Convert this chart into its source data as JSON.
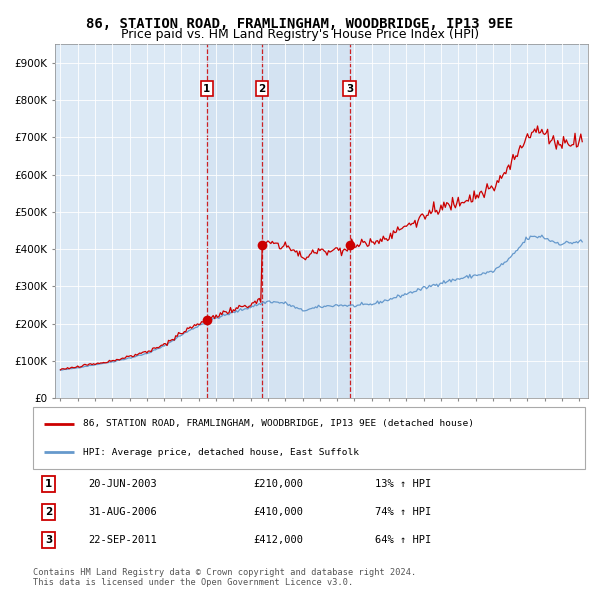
{
  "title": "86, STATION ROAD, FRAMLINGHAM, WOODBRIDGE, IP13 9EE",
  "subtitle": "Price paid vs. HM Land Registry's House Price Index (HPI)",
  "legend_line1": "86, STATION ROAD, FRAMLINGHAM, WOODBRIDGE, IP13 9EE (detached house)",
  "legend_line2": "HPI: Average price, detached house, East Suffolk",
  "footer1": "Contains HM Land Registry data © Crown copyright and database right 2024.",
  "footer2": "This data is licensed under the Open Government Licence v3.0.",
  "transactions": [
    {
      "num": 1,
      "date": "20-JUN-2003",
      "price": 210000,
      "pct": "13%",
      "x_year": 2003.47
    },
    {
      "num": 2,
      "date": "31-AUG-2006",
      "price": 410000,
      "pct": "74%",
      "x_year": 2006.66
    },
    {
      "num": 3,
      "date": "22-SEP-2011",
      "price": 412000,
      "pct": "64%",
      "x_year": 2011.72
    }
  ],
  "red_line_color": "#cc0000",
  "blue_line_color": "#6699cc",
  "bg_color": "#dce9f5",
  "vline_color": "#cc0000",
  "label_box_color": "#cc0000",
  "ylim": [
    0,
    950000
  ],
  "yticks": [
    0,
    100000,
    200000,
    300000,
    400000,
    500000,
    600000,
    700000,
    800000,
    900000
  ],
  "ytick_labels": [
    "£0",
    "£100K",
    "£200K",
    "£300K",
    "£400K",
    "£500K",
    "£600K",
    "£700K",
    "£800K",
    "£900K"
  ],
  "title_fontsize": 10,
  "subtitle_fontsize": 9,
  "hpi_anchors": [
    [
      1995.0,
      75000
    ],
    [
      1996.0,
      82000
    ],
    [
      1997.0,
      90000
    ],
    [
      1998.0,
      98000
    ],
    [
      1999.0,
      108000
    ],
    [
      2000.0,
      120000
    ],
    [
      2001.0,
      140000
    ],
    [
      2002.0,
      170000
    ],
    [
      2003.0,
      195000
    ],
    [
      2004.0,
      215000
    ],
    [
      2005.0,
      230000
    ],
    [
      2006.0,
      245000
    ],
    [
      2007.0,
      260000
    ],
    [
      2008.0,
      255000
    ],
    [
      2009.0,
      235000
    ],
    [
      2010.0,
      245000
    ],
    [
      2011.0,
      250000
    ],
    [
      2012.0,
      248000
    ],
    [
      2013.0,
      252000
    ],
    [
      2014.0,
      265000
    ],
    [
      2015.0,
      280000
    ],
    [
      2016.0,
      295000
    ],
    [
      2017.0,
      310000
    ],
    [
      2018.0,
      320000
    ],
    [
      2019.0,
      330000
    ],
    [
      2020.0,
      340000
    ],
    [
      2021.0,
      375000
    ],
    [
      2022.0,
      430000
    ],
    [
      2022.8,
      435000
    ],
    [
      2023.5,
      420000
    ],
    [
      2024.0,
      415000
    ],
    [
      2025.0,
      420000
    ]
  ],
  "xlim_left": 1994.7,
  "xlim_right": 2025.5
}
